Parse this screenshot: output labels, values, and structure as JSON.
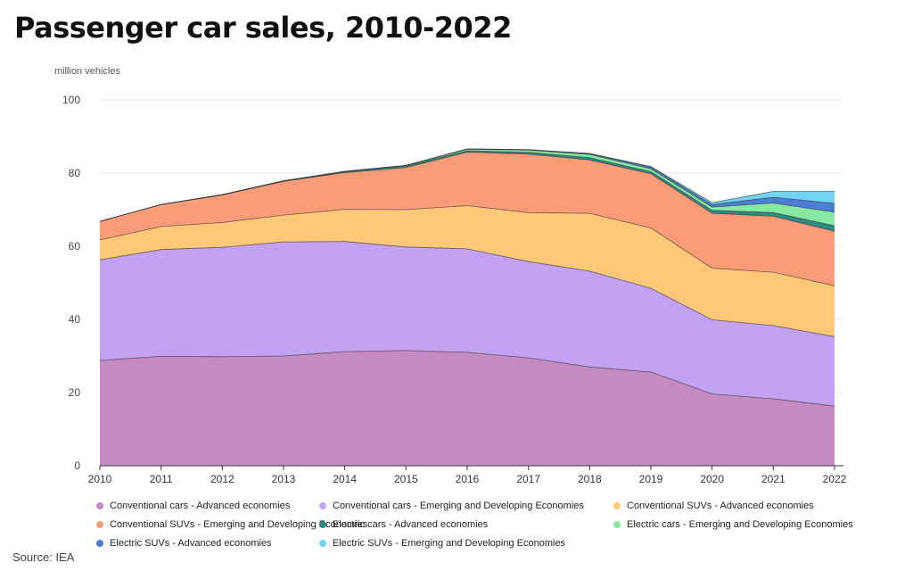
{
  "page": {
    "title": "Passenger car sales, 2010-2022",
    "source": "Source: IEA"
  },
  "chart_data": {
    "type": "area",
    "stacked": true,
    "title": "Passenger car sales, 2010-2022",
    "ylabel": "million vehicles",
    "xlabel": "",
    "ylim": [
      0,
      100
    ],
    "yticks": [
      0,
      20,
      40,
      60,
      80,
      100
    ],
    "grid": true,
    "legend_position": "bottom",
    "x": [
      "2010",
      "2011",
      "2012",
      "2013",
      "2014",
      "2015",
      "2016",
      "2017",
      "2018",
      "2019",
      "2020",
      "2021",
      "2022"
    ],
    "series": [
      {
        "name": "Conventional cars - Advanced economies",
        "color": "#c48bc4",
        "values": [
          28.8,
          29.9,
          29.8,
          30.0,
          31.2,
          31.5,
          31.0,
          29.5,
          27.0,
          25.6,
          19.6,
          18.3,
          16.3
        ]
      },
      {
        "name": "Conventional cars - Emerging and Developing Economies",
        "color": "#c3a1f3",
        "values": [
          27.5,
          29.2,
          29.9,
          31.2,
          30.1,
          28.3,
          28.3,
          26.3,
          26.2,
          22.9,
          20.3,
          20.0,
          19.0
        ]
      },
      {
        "name": "Conventional SUVs - Advanced economies",
        "color": "#ffc878",
        "values": [
          5.4,
          6.3,
          6.8,
          7.3,
          8.8,
          10.2,
          11.8,
          13.4,
          15.8,
          16.5,
          14.1,
          14.6,
          13.9
        ]
      },
      {
        "name": "Conventional SUVs - Emerging and Developing Economies",
        "color": "#fb9b78",
        "values": [
          5.1,
          6.0,
          7.5,
          9.2,
          10.0,
          11.5,
          14.6,
          16.0,
          14.6,
          14.8,
          15.0,
          15.3,
          14.9
        ]
      },
      {
        "name": "Electric cars - Advanced economies",
        "color": "#2b8c84",
        "values": [
          0.0,
          0.0,
          0.1,
          0.2,
          0.3,
          0.4,
          0.4,
          0.5,
          0.6,
          0.6,
          0.8,
          1.0,
          1.5
        ]
      },
      {
        "name": "Electric cars - Emerging and Developing Economies",
        "color": "#86e8a2",
        "values": [
          0.0,
          0.0,
          0.0,
          0.0,
          0.1,
          0.2,
          0.4,
          0.6,
          0.9,
          0.8,
          0.9,
          2.6,
          3.7
        ]
      },
      {
        "name": "Electric SUVs - Advanced economies",
        "color": "#4a7fd4",
        "values": [
          0.0,
          0.0,
          0.0,
          0.0,
          0.0,
          0.0,
          0.1,
          0.1,
          0.2,
          0.4,
          0.7,
          1.6,
          2.4
        ]
      },
      {
        "name": "Electric SUVs - Emerging and Developing Economies",
        "color": "#6fd4f0",
        "values": [
          0.0,
          0.0,
          0.0,
          0.0,
          0.0,
          0.0,
          0.0,
          0.0,
          0.1,
          0.2,
          0.5,
          1.6,
          3.3
        ]
      }
    ]
  },
  "legend_rows": [
    [
      0,
      1,
      2
    ],
    [
      3,
      4,
      5
    ],
    [
      6,
      7
    ]
  ]
}
